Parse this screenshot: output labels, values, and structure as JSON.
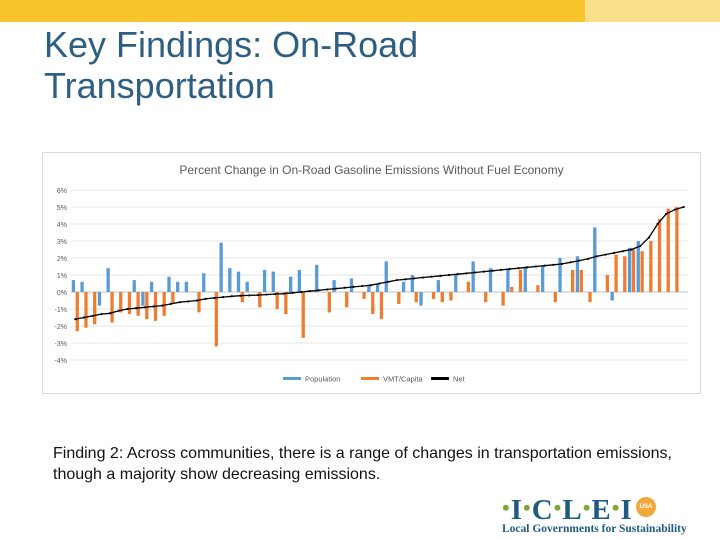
{
  "slide": {
    "title": "Key Findings: On-Road Transportation",
    "finding": "Finding 2: Across communities, there is a range of changes in transportation emissions, though a majority show decreasing emissions."
  },
  "logo": {
    "letters": [
      "I",
      "C",
      "L",
      "E",
      "I"
    ],
    "badge": "USA",
    "tagline": "Local Governments for Sustainability"
  },
  "colors": {
    "population": "#5b9bd5",
    "vmt": "#ed7d31",
    "net": "#000000"
  },
  "chart_data": {
    "type": "bar",
    "title": "Percent Change in On-Road Gasoline Emissions Without Fuel Economy",
    "xlabel": "",
    "ylabel": "",
    "ylim": [
      -4,
      6
    ],
    "yticks": [
      "6%",
      "5%",
      "4%",
      "3%",
      "2%",
      "1%",
      "0%",
      "-1%",
      "-2%",
      "-3%",
      "-4%"
    ],
    "grid": true,
    "legend_position": "bottom",
    "series": [
      {
        "name": "Population",
        "type": "bar",
        "values": [
          0.7,
          0.6,
          -0.8,
          1.4,
          0.7,
          -0.8,
          0.6,
          0.9,
          0.6,
          0.6,
          1.1,
          2.9,
          1.4,
          1.2,
          0.6,
          1.3,
          1.2,
          0.9,
          1.3,
          0.1,
          1.6,
          0.7,
          0.8,
          0.4,
          0.5,
          1.8,
          0.6,
          1.0,
          -0.8,
          0.7,
          1.0,
          1.8,
          1.4,
          1.4,
          1.5,
          1.5,
          2.0,
          2.1,
          3.8,
          -0.5,
          2.6,
          3.0
        ],
        "members": [
          0,
          1,
          3,
          4,
          7,
          8,
          9,
          11,
          12,
          13,
          15,
          17,
          18,
          19,
          20,
          22,
          23,
          25,
          26,
          27,
          28,
          30,
          32,
          34,
          35,
          36,
          38,
          39,
          40,
          42,
          44,
          46,
          48,
          50,
          52,
          54,
          56,
          58,
          60,
          62,
          64,
          65
        ]
      },
      {
        "name": "VMT/Capita",
        "type": "bar",
        "values": [
          -2.3,
          -2.1,
          -1.9,
          -1.8,
          -1.2,
          -1.3,
          -1.4,
          -1.6,
          -1.7,
          -1.4,
          -0.7,
          -1.2,
          -3.2,
          -0.6,
          -0.9,
          -1.0,
          -1.3,
          -2.7,
          -1.2,
          -0.9,
          -0.4,
          -1.3,
          -1.6,
          -0.7,
          -0.6,
          -0.4,
          -0.6,
          -0.5,
          0.6,
          -0.6,
          -0.8,
          0.3,
          1.3,
          0.4,
          -0.6,
          1.3,
          1.3,
          -0.6,
          1.0,
          2.2,
          2.1,
          2.5,
          2.4,
          3.0,
          4.3,
          4.9,
          5.0
        ],
        "members": [
          0,
          1,
          2,
          4,
          5,
          6,
          7,
          8,
          9,
          10,
          11,
          14,
          16,
          19,
          21,
          23,
          24,
          26,
          29,
          31,
          33,
          34,
          35,
          37,
          39,
          41,
          42,
          43,
          45,
          47,
          49,
          50,
          51,
          53,
          55,
          57,
          58,
          59,
          61,
          62,
          63,
          64,
          65,
          66,
          67,
          68,
          69
        ]
      },
      {
        "name": "Net",
        "type": "line",
        "values": [
          -1.6,
          -1.5,
          -1.4,
          -1.3,
          -1.25,
          -1.1,
          -1.0,
          -0.95,
          -0.9,
          -0.85,
          -0.8,
          -0.7,
          -0.6,
          -0.55,
          -0.5,
          -0.4,
          -0.35,
          -0.3,
          -0.25,
          -0.22,
          -0.2,
          -0.18,
          -0.15,
          -0.12,
          -0.1,
          -0.05,
          0.0,
          0.05,
          0.1,
          0.15,
          0.2,
          0.25,
          0.3,
          0.35,
          0.4,
          0.5,
          0.6,
          0.7,
          0.75,
          0.8,
          0.85,
          0.9,
          0.95,
          1.0,
          1.05,
          1.1,
          1.15,
          1.2,
          1.25,
          1.3,
          1.35,
          1.4,
          1.45,
          1.5,
          1.55,
          1.6,
          1.65,
          1.75,
          1.85,
          1.95,
          2.1,
          2.2,
          2.3,
          2.4,
          2.5,
          2.7,
          3.2,
          4.0,
          4.6,
          4.85,
          5.0
        ]
      }
    ]
  }
}
